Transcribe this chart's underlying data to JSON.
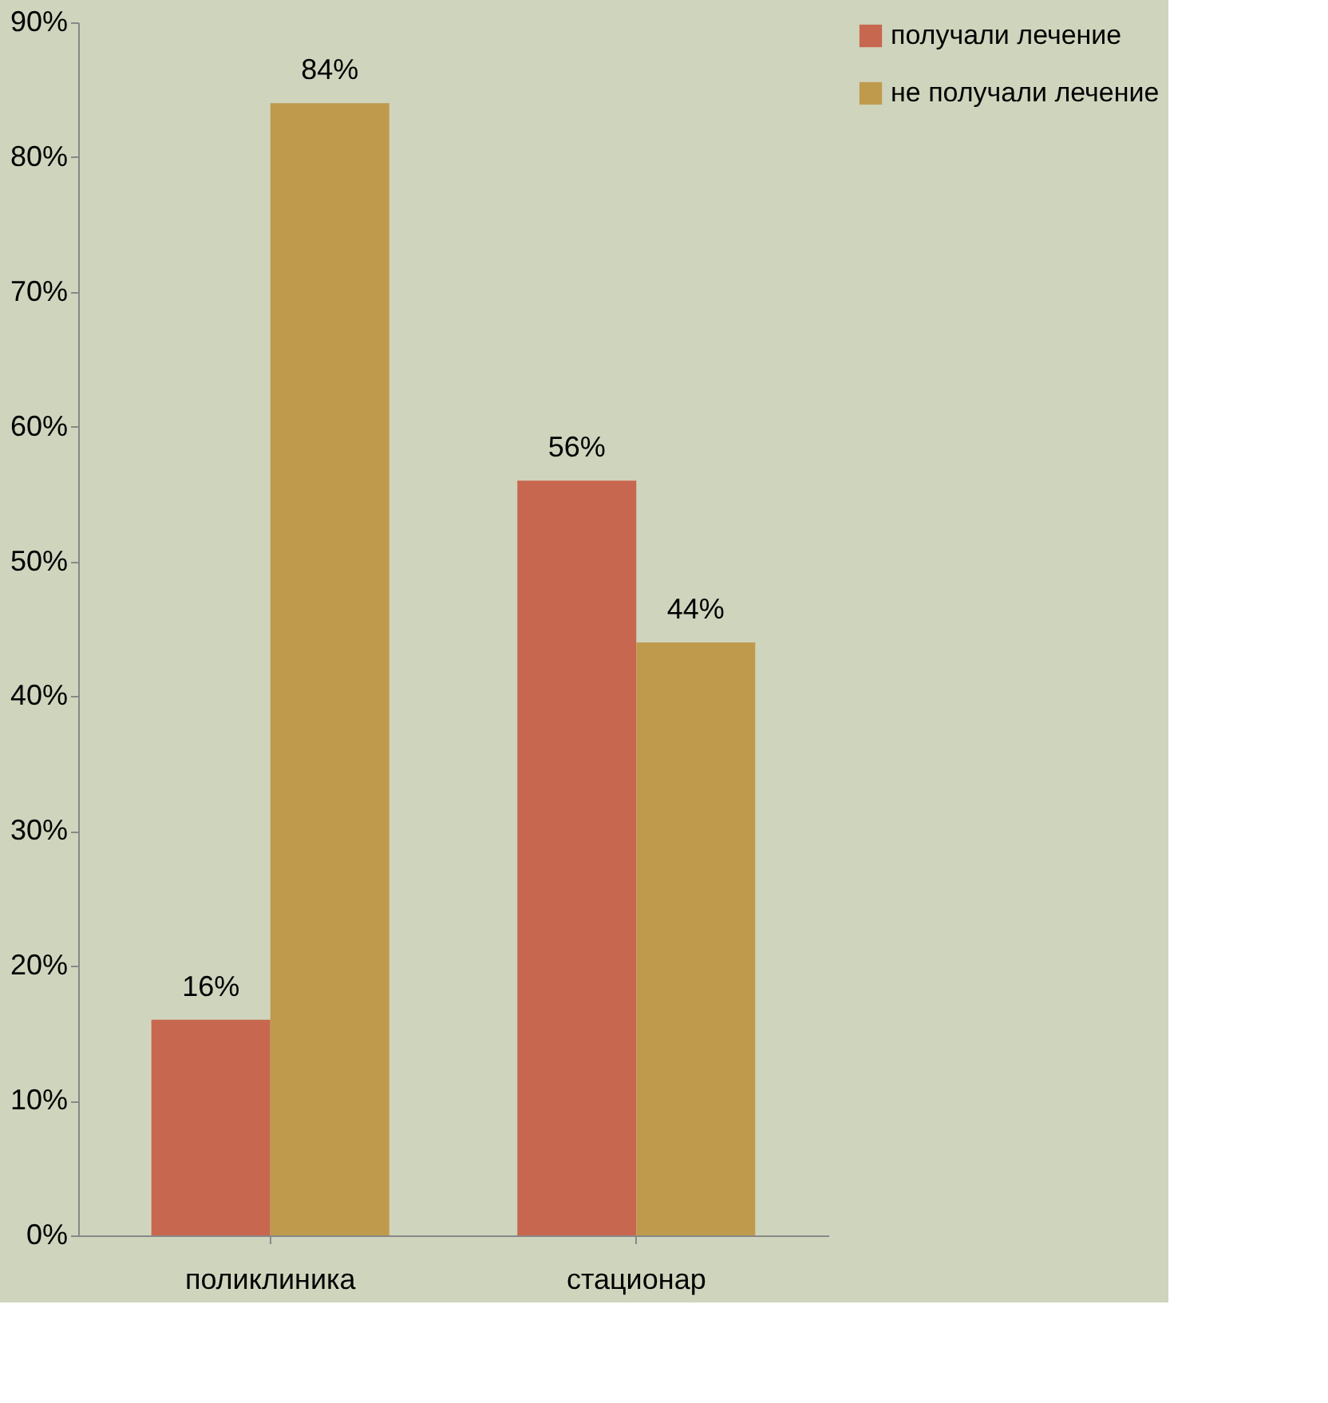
{
  "chart_data": {
    "type": "bar",
    "categories": [
      "поликлиника",
      "стационар"
    ],
    "series": [
      {
        "name": "получали лечение",
        "color": "#c8674f",
        "values": [
          16,
          56
        ],
        "value_labels": [
          "16%",
          "56%"
        ]
      },
      {
        "name": "не получали лечение",
        "color": "#c09a4c",
        "values": [
          84,
          44
        ],
        "value_labels": [
          "84%",
          "44%"
        ]
      }
    ],
    "ylim": [
      0,
      90
    ],
    "yticks": [
      {
        "value": 0,
        "label": "0%"
      },
      {
        "value": 10,
        "label": "10%"
      },
      {
        "value": 20,
        "label": "20%"
      },
      {
        "value": 30,
        "label": "30%"
      },
      {
        "value": 40,
        "label": "40%"
      },
      {
        "value": 50,
        "label": "50%"
      },
      {
        "value": 60,
        "label": "60%"
      },
      {
        "value": 70,
        "label": "70%"
      },
      {
        "value": 80,
        "label": "80%"
      },
      {
        "value": 90,
        "label": "90%"
      }
    ],
    "grid": false,
    "legend": "right"
  }
}
